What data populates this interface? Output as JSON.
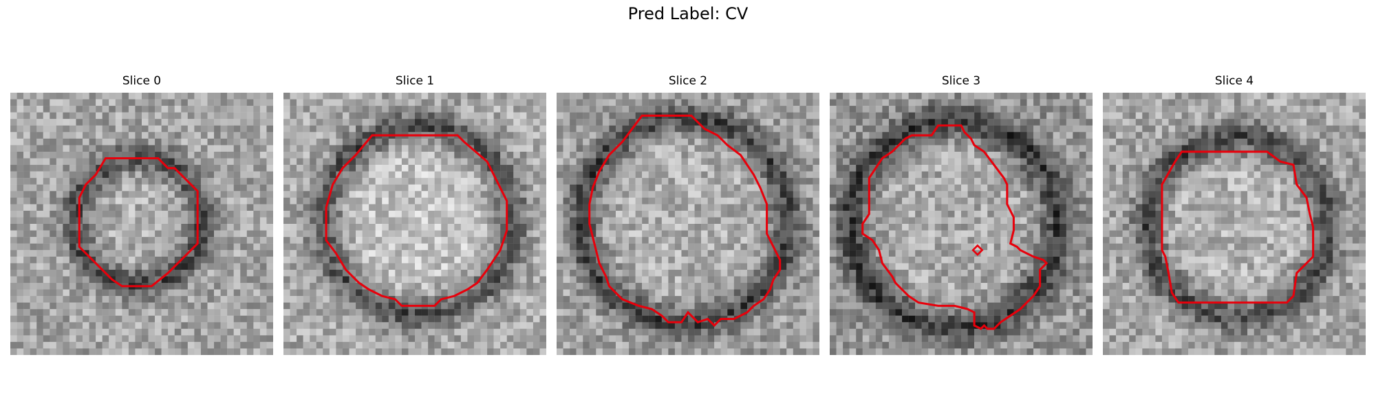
{
  "figure": {
    "title": "Pred Label: CV"
  },
  "panels": [
    {
      "title": "Slice 0"
    },
    {
      "title": "Slice 1"
    },
    {
      "title": "Slice 2"
    },
    {
      "title": "Slice 3"
    },
    {
      "title": "Slice 4"
    }
  ],
  "colors": {
    "contour": "#e8000b",
    "background": "#ffffff"
  }
}
